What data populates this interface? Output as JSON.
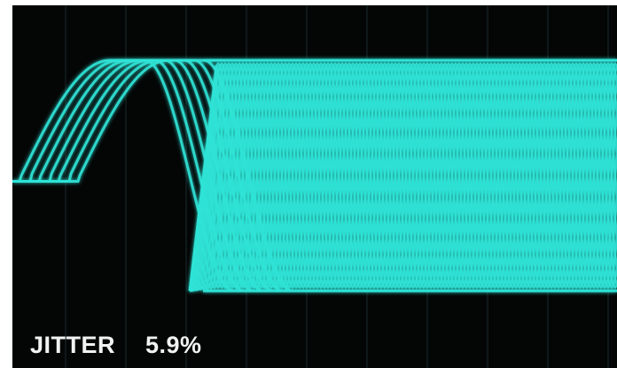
{
  "display": {
    "background_color": "#040606",
    "trace_color": "#2fe3d6",
    "grid_color": "#1a2a2a"
  },
  "measurement": {
    "label": "JITTER",
    "value": "5.9%"
  }
}
